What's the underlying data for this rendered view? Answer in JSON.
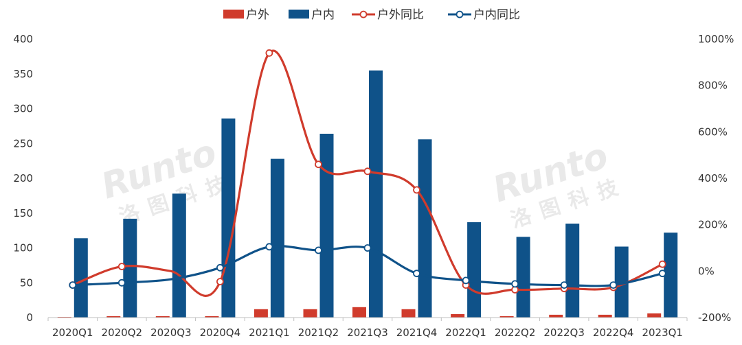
{
  "chart_data": {
    "type": "bar",
    "title": "",
    "xlabel": "",
    "ylabel": "",
    "categories": [
      "2020Q1",
      "2020Q2",
      "2020Q3",
      "2020Q4",
      "2021Q1",
      "2021Q2",
      "2021Q3",
      "2021Q4",
      "2022Q1",
      "2022Q2",
      "2022Q3",
      "2022Q4",
      "2023Q1"
    ],
    "ylim": [
      0,
      400
    ],
    "y_ticks": [
      "0",
      "50",
      "100",
      "150",
      "200",
      "250",
      "300",
      "350",
      "400"
    ],
    "y2lim": [
      -200,
      1000
    ],
    "y2_ticks": [
      "-200%",
      "0%",
      "200%",
      "400%",
      "600%",
      "800%",
      "1000%"
    ],
    "legend_position": "top-center",
    "grid": false,
    "series": [
      {
        "name": "户外",
        "kind": "bar",
        "axis": "left",
        "color": "#d03b2c",
        "values": [
          1,
          2,
          2,
          2,
          12,
          12,
          15,
          12,
          5,
          2,
          4,
          4,
          6
        ]
      },
      {
        "name": "户内",
        "kind": "bar",
        "axis": "left",
        "color": "#0f5289",
        "values": [
          114,
          142,
          178,
          286,
          228,
          264,
          355,
          256,
          137,
          116,
          135,
          102,
          122
        ]
      },
      {
        "name": "户外同比",
        "kind": "line",
        "axis": "right",
        "color": "#d03b2c",
        "values": [
          -60,
          20,
          null,
          -45,
          940,
          460,
          430,
          350,
          -60,
          -80,
          -75,
          -70,
          30
        ]
      },
      {
        "name": "户内同比",
        "kind": "line",
        "axis": "right",
        "color": "#0f5289",
        "values": [
          -60,
          -50,
          null,
          15,
          105,
          90,
          100,
          -10,
          -40,
          -55,
          -60,
          -60,
          -10
        ]
      }
    ],
    "line_hidden_values": {
      "户外同比": {
        "2020Q3": 0
      },
      "户内同比": {
        "2020Q3": -35
      }
    }
  },
  "watermark": {
    "logo_text": "Runto",
    "sub_text": "洛图科技"
  }
}
